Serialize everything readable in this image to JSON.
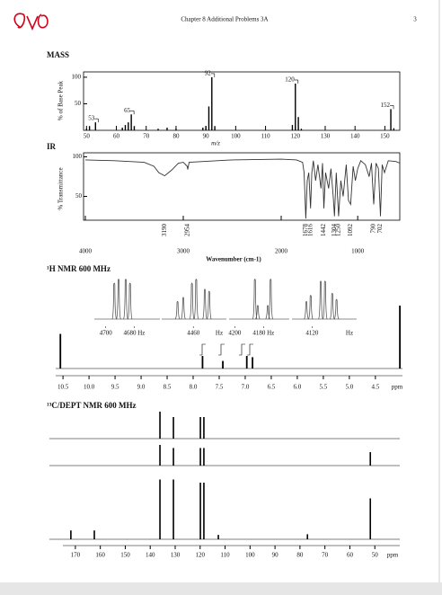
{
  "header": {
    "title": "Chapter 8 Additional Problems 3A",
    "page_number": "3"
  },
  "chart_data": [
    {
      "type": "bar",
      "title": "MASS",
      "ylabel": "% of Base Peak",
      "xlabel": "m/z",
      "x": [
        50,
        51,
        53,
        62,
        63,
        64,
        65,
        66,
        74,
        77,
        80,
        89,
        90,
        91,
        92,
        93,
        119,
        120,
        121,
        122,
        152,
        153
      ],
      "values": [
        3,
        8,
        15,
        5,
        10,
        15,
        30,
        8,
        3,
        5,
        3,
        5,
        8,
        45,
        100,
        8,
        10,
        88,
        25,
        3,
        40,
        4
      ],
      "xlim": [
        49,
        155
      ],
      "ylim": [
        0,
        110
      ],
      "xticks": [
        50,
        60,
        70,
        80,
        90,
        100,
        110,
        120,
        130,
        140,
        150
      ],
      "yticks": [
        50,
        100
      ],
      "peak_labels": [
        53,
        65,
        92,
        120,
        152
      ],
      "color": "#000000"
    },
    {
      "type": "line",
      "title": "IR",
      "ylabel": "% Transmittance",
      "xlabel": "Wavenumber (cm-1)",
      "x": [
        4000,
        3700,
        3400,
        3300,
        3250,
        3190,
        3120,
        3050,
        3000,
        2960,
        2954,
        2940,
        2500,
        2000,
        1800,
        1720,
        1700,
        1678,
        1660,
        1640,
        1616,
        1600,
        1580,
        1550,
        1520,
        1480,
        1460,
        1442,
        1420,
        1380,
        1350,
        1320,
        1304,
        1280,
        1250,
        1220,
        1190,
        1150,
        1120,
        1092,
        1060,
        1030,
        1000,
        960,
        900,
        850,
        820,
        790,
        760,
        730,
        702,
        680,
        650,
        600,
        500,
        450
      ],
      "values": [
        96,
        95,
        93,
        88,
        80,
        76,
        83,
        92,
        93,
        88,
        84,
        93,
        96,
        97,
        96,
        93,
        80,
        22,
        70,
        80,
        35,
        80,
        95,
        70,
        90,
        60,
        92,
        35,
        80,
        60,
        85,
        50,
        25,
        80,
        25,
        70,
        50,
        90,
        45,
        40,
        88,
        70,
        85,
        95,
        90,
        75,
        92,
        40,
        92,
        85,
        25,
        90,
        80,
        95,
        94,
        92
      ],
      "xlim": [
        4000,
        450
      ],
      "ylim": [
        20,
        105
      ],
      "xticks": [
        4000,
        3000,
        2000,
        1000
      ],
      "yticks": [
        50,
        100
      ],
      "peak_labels": [
        3190,
        2954,
        1678,
        1616,
        1442,
        1304,
        1250,
        1092,
        790,
        702
      ],
      "color": "#333333"
    },
    {
      "type": "nmr",
      "title": "¹H NMR 600 MHz",
      "xlabel": "ppm",
      "x": [
        10.55,
        7.82,
        7.43,
        6.97,
        6.86,
        4.03
      ],
      "values": [
        0.55,
        0.2,
        0.12,
        0.2,
        0.18,
        1.0
      ],
      "xlim": [
        10.64,
        3.98
      ],
      "ylim": [
        0,
        1
      ],
      "xticks": [
        {
          "value": 10.5,
          "label": "10.5"
        },
        {
          "value": 10,
          "label": "10.0"
        },
        {
          "value": 9.5,
          "label": "9.5"
        },
        {
          "value": 9,
          "label": "9.0"
        },
        {
          "value": 8.5,
          "label": "8.5"
        },
        {
          "value": 8,
          "label": "8.0"
        },
        {
          "value": 7.5,
          "label": "7.5"
        },
        {
          "value": 7,
          "label": "7.0"
        },
        {
          "value": 6.5,
          "label": "6.5"
        },
        {
          "value": 6,
          "label": "6.0"
        },
        {
          "value": 5.5,
          "label": "5.5"
        },
        {
          "value": 5,
          "label": "5.0"
        },
        {
          "value": 4.5,
          "label": "4.5"
        }
      ],
      "insets": [
        {
          "xlim": [
            4708,
            4662
          ],
          "xticks": [
            4700,
            {
              "value": 4680,
              "label": "4680 Hz"
            }
          ],
          "lines": [
            4694,
            4691,
            4686,
            4683
          ],
          "heights": [
            0.9,
            1,
            1,
            0.9
          ]
        },
        {
          "xlim": [
            4482,
            4437
          ],
          "xticks": [
            4460
          ],
          "unit": "Hz",
          "lines": [
            4471,
            4467,
            4461,
            4458,
            4452,
            4449
          ],
          "heights": [
            0.45,
            0.55,
            0.9,
            1,
            0.75,
            0.7
          ]
        },
        {
          "xlim": [
            4204,
            4162
          ],
          "xticks": [
            4200,
            {
              "value": 4180,
              "label": "4180 Hz"
            }
          ],
          "lines": [
            4186,
            4184,
            4177,
            4175
          ],
          "heights": [
            1,
            0.35,
            0.35,
            1
          ]
        },
        {
          "xlim": [
            4134,
            4089
          ],
          "xticks": [
            4120
          ],
          "unit": "Hz",
          "lines": [
            4124,
            4121,
            4114,
            4111,
            4106,
            4103
          ],
          "heights": [
            0.45,
            0.6,
            0.95,
            0.95,
            0.65,
            0.5
          ]
        }
      ],
      "color": "#000000"
    },
    {
      "type": "nmr-stack",
      "title": "¹³C/DEPT NMR 600 MHz",
      "xlabel": "ppm",
      "xlim": [
        175,
        40
      ],
      "ylim": [
        0,
        1
      ],
      "xticks": [
        170,
        160,
        150,
        140,
        130,
        120,
        110,
        100,
        90,
        80,
        70,
        60,
        50
      ],
      "traces": [
        {
          "x": [
            136.1,
            130.7,
            119.9,
            118.5
          ],
          "values": [
            1,
            0.8,
            0.8,
            0.8
          ]
        },
        {
          "x": [
            136.1,
            130.7,
            119.9,
            118.5,
            51.8
          ],
          "values": [
            1,
            0.85,
            0.85,
            0.85,
            0.65
          ]
        },
        {
          "x": [
            171.8,
            162.4,
            136.1,
            130.7,
            119.9,
            118.5,
            112.7,
            77.0,
            51.8
          ],
          "values": [
            0.14,
            0.14,
            0.95,
            0.95,
            0.9,
            0.9,
            0.07,
            0.08,
            0.65
          ]
        }
      ],
      "color": "#000000"
    }
  ]
}
